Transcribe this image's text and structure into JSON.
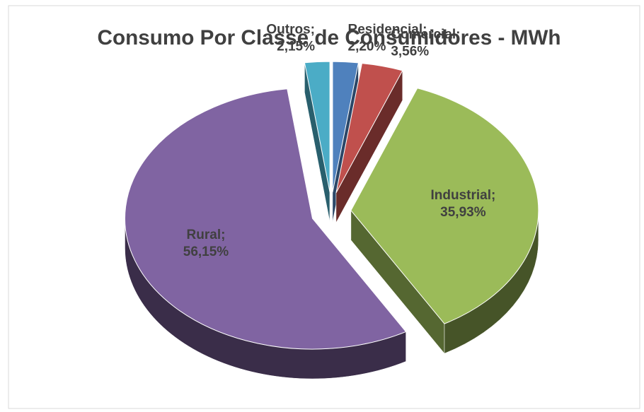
{
  "chart_data": {
    "type": "pie3d",
    "title": "Consumo Por Classe de Consumidores - MWh",
    "categories": [
      "Residencial;",
      "Comercial;",
      "Industrial;",
      "Rural;",
      "Outros;"
    ],
    "values": [
      2.2,
      3.56,
      35.93,
      56.15,
      2.15
    ],
    "value_labels": [
      "2,20%",
      "3,56%",
      "35,93%",
      "56,15%",
      "2,15%"
    ],
    "colors": [
      "#4f81bd",
      "#c0504d",
      "#9bbb59",
      "#8064a2",
      "#4bacc6"
    ]
  }
}
